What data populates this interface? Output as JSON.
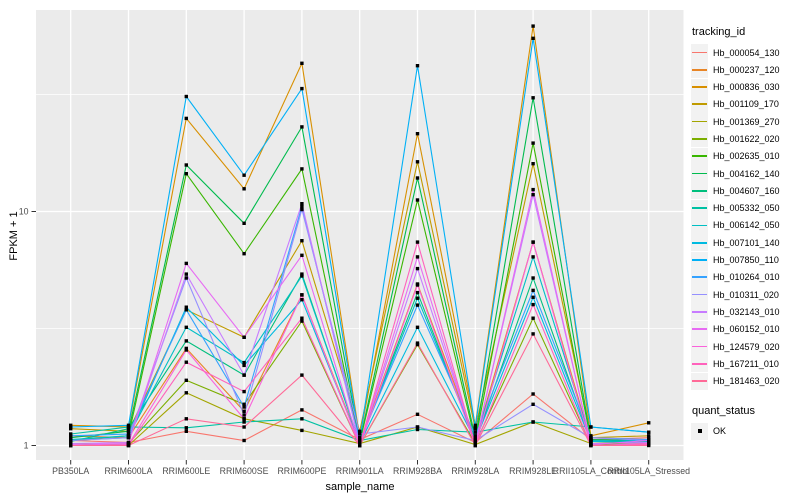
{
  "chart_data": {
    "type": "line",
    "xlabel": "sample_name",
    "ylabel": "FPKM + 1",
    "y_scale": "log10",
    "ylim": [
      0.86,
      72
    ],
    "y_ticks": [
      1,
      10
    ],
    "y_minor_ticks": [
      3.162,
      31.62
    ],
    "grid": true,
    "panel_bg": "#EBEBEB",
    "grid_color": "#FFFFFF",
    "tick_label_color": "#4D4D4D",
    "point_color": "#000000",
    "legend_position": "right",
    "categories": [
      "PB350LA",
      "RRIM600LA",
      "RRIM600LE",
      "RRIM600SE",
      "RRIM600PE",
      "RRIM901LA",
      "RRIM928BA",
      "RRIM928LA",
      "RRIM928LE",
      "RRII105LA_Control",
      "RRII105LA_Stressed"
    ],
    "series": [
      {
        "name": "Hb_000054_130",
        "color": "#F8766D",
        "values": [
          1.05,
          1.03,
          1.15,
          1.05,
          1.42,
          1.06,
          1.36,
          1.03,
          1.66,
          1.06,
          1.08
        ]
      },
      {
        "name": "Hb_000237_120",
        "color": "#E88526",
        "values": [
          1.1,
          1.08,
          2.6,
          1.4,
          4.4,
          1.02,
          4.9,
          1.05,
          7.4,
          1.04,
          1.06
        ]
      },
      {
        "name": "Hb_000836_030",
        "color": "#D89000",
        "values": [
          1.22,
          1.2,
          25.0,
          12.5,
          43.0,
          1.08,
          21.5,
          1.22,
          62.0,
          1.1,
          1.25
        ]
      },
      {
        "name": "Hb_001109_170",
        "color": "#C09B00",
        "values": [
          1.18,
          1.15,
          3.8,
          2.9,
          7.5,
          1.15,
          16.3,
          1.18,
          16.0,
          1.08,
          1.1
        ]
      },
      {
        "name": "Hb_001369_270",
        "color": "#A3A500",
        "values": [
          1.02,
          1.0,
          1.68,
          1.3,
          1.16,
          1.02,
          1.2,
          1.01,
          1.26,
          1.02,
          1.04
        ]
      },
      {
        "name": "Hb_001622_020",
        "color": "#7CAE00",
        "values": [
          1.0,
          1.02,
          1.9,
          1.5,
          3.4,
          1.0,
          2.7,
          1.02,
          3.5,
          1.01,
          1.02
        ]
      },
      {
        "name": "Hb_002635_010",
        "color": "#39B600",
        "values": [
          1.05,
          1.1,
          14.5,
          6.6,
          15.2,
          1.03,
          11.2,
          1.05,
          19.6,
          1.05,
          1.03
        ]
      },
      {
        "name": "Hb_004162_140",
        "color": "#00BB4E",
        "values": [
          1.08,
          1.15,
          15.8,
          8.9,
          23.0,
          1.04,
          13.9,
          1.08,
          30.6,
          1.06,
          1.05
        ]
      },
      {
        "name": "Hb_004607_160",
        "color": "#00BF7D",
        "values": [
          1.04,
          1.18,
          2.8,
          2.0,
          5.4,
          1.02,
          4.5,
          1.04,
          5.2,
          1.04,
          1.03
        ]
      },
      {
        "name": "Hb_005332_050",
        "color": "#00C1A3",
        "values": [
          1.12,
          1.2,
          1.19,
          1.26,
          1.3,
          1.05,
          1.17,
          1.14,
          1.26,
          1.2,
          1.14
        ]
      },
      {
        "name": "Hb_006142_050",
        "color": "#00BFC4",
        "values": [
          1.06,
          1.1,
          3.2,
          2.26,
          5.3,
          1.03,
          4.26,
          1.06,
          6.4,
          1.05,
          1.04
        ]
      },
      {
        "name": "Hb_007101_140",
        "color": "#00BAE0",
        "values": [
          1.05,
          1.08,
          3.9,
          2.2,
          4.2,
          1.02,
          3.2,
          1.05,
          4.3,
          1.04,
          1.05
        ]
      },
      {
        "name": "Hb_007850_110",
        "color": "#00B0F6",
        "values": [
          1.2,
          1.22,
          31.0,
          14.3,
          33.5,
          1.06,
          42.0,
          1.2,
          55.0,
          1.2,
          1.14
        ]
      },
      {
        "name": "Hb_010264_010",
        "color": "#35A2FF",
        "values": [
          1.1,
          1.12,
          3.8,
          1.46,
          10.5,
          1.04,
          3.98,
          1.1,
          4.6,
          1.08,
          1.06
        ]
      },
      {
        "name": "Hb_010311_020",
        "color": "#9590FF",
        "values": [
          1.05,
          1.08,
          5.2,
          1.35,
          10.2,
          1.12,
          1.2,
          1.05,
          1.5,
          1.08,
          1.05
        ]
      },
      {
        "name": "Hb_032143_010",
        "color": "#C77CFF",
        "values": [
          1.02,
          1.03,
          5.4,
          2.0,
          10.8,
          1.01,
          5.7,
          1.02,
          11.8,
          1.02,
          1.03
        ]
      },
      {
        "name": "Hb_060152_010",
        "color": "#E76BF3",
        "values": [
          1.01,
          1.02,
          6.0,
          2.9,
          6.5,
          1.0,
          6.4,
          1.01,
          12.4,
          1.01,
          1.05
        ]
      },
      {
        "name": "Hb_124579_020",
        "color": "#FA62DB",
        "values": [
          1.0,
          1.01,
          2.56,
          1.3,
          4.4,
          1.0,
          4.85,
          1.0,
          7.4,
          1.0,
          1.02
        ]
      },
      {
        "name": "Hb_167211_010",
        "color": "#FF62BC",
        "values": [
          1.0,
          1.0,
          2.27,
          1.7,
          3.5,
          1.0,
          7.4,
          1.0,
          4.0,
          1.0,
          1.01
        ]
      },
      {
        "name": "Hb_181463_020",
        "color": "#FF6A98",
        "values": [
          1.0,
          1.0,
          1.3,
          1.2,
          2.0,
          1.0,
          2.74,
          1.0,
          3.0,
          1.0,
          1.0
        ]
      }
    ]
  },
  "legend": {
    "tracking_title": "tracking_id",
    "quant_title": "quant_status",
    "quant_items": [
      {
        "label": "OK"
      }
    ]
  }
}
